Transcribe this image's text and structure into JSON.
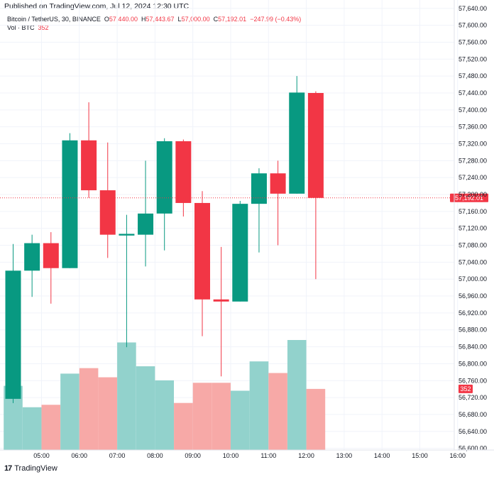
{
  "header": {
    "published": "Published on TradingView.com, Jul 12, 2024 12:30 UTC",
    "symbol": "Bitcoin / TetherUS, 30, BINANCE",
    "open_label": "O",
    "open": "57,440.00",
    "high_label": "H",
    "high": "57,443.67",
    "low_label": "L",
    "low": "57,000.00",
    "close_label": "C",
    "close": "57,192.01",
    "change": "−247.99 (−0.43%)",
    "vol_label": "Vol · BTC",
    "vol_value": "352"
  },
  "footer": {
    "brand": "TradingView",
    "logo": "17"
  },
  "colors": {
    "up": "#089981",
    "down": "#f23645",
    "vol_up": "#92d2cc",
    "vol_down": "#f7a9a7",
    "grid": "#f0f3fa"
  },
  "chart_data": {
    "type": "candlestick",
    "y_ticks": [
      "56,600.00",
      "56,640.00",
      "56,680.00",
      "56,720.00",
      "56,760.00",
      "56,800.00",
      "56,840.00",
      "56,880.00",
      "56,920.00",
      "56,960.00",
      "57,000.00",
      "57,040.00",
      "57,080.00",
      "57,120.00",
      "57,160.00",
      "57,200.00",
      "57,240.00",
      "57,280.00",
      "57,320.00",
      "57,360.00",
      "57,400.00",
      "57,440.00",
      "57,480.00",
      "57,520.00",
      "57,560.00",
      "57,600.00",
      "57,640.00"
    ],
    "y_tick_values": [
      56600,
      56640,
      56680,
      56720,
      56760,
      56800,
      56840,
      56880,
      56920,
      56960,
      57000,
      57040,
      57080,
      57120,
      57160,
      57200,
      57240,
      57280,
      57320,
      57360,
      57400,
      57440,
      57480,
      57520,
      57560,
      57600,
      57640
    ],
    "ylim": [
      56596,
      57643
    ],
    "x_ticks": [
      "05:00",
      "06:00",
      "07:00",
      "08:00",
      "09:00",
      "10:00",
      "11:00",
      "12:00",
      "13:00",
      "14:00",
      "15:00",
      "16:00"
    ],
    "x_tick_slots": [
      1.5,
      3.5,
      5.5,
      7.5,
      9.5,
      11.5,
      13.5,
      15.5,
      17.5,
      19.5,
      21.5,
      23.5
    ],
    "candles": [
      {
        "time": "04:30",
        "open": 56717,
        "high": 57083,
        "low": 56707,
        "close": 57020,
        "volume": 1.05
      },
      {
        "time": "05:00",
        "open": 57020,
        "high": 57105,
        "low": 56958,
        "close": 57085,
        "volume": 0.7
      },
      {
        "time": "05:30",
        "open": 57085,
        "high": 57111,
        "low": 56942,
        "close": 57026,
        "volume": 0.74
      },
      {
        "time": "06:00",
        "open": 57026,
        "high": 57345,
        "low": 57026,
        "close": 57328,
        "volume": 1.25
      },
      {
        "time": "06:30",
        "open": 57328,
        "high": 57418,
        "low": 57192,
        "close": 57210,
        "volume": 1.34
      },
      {
        "time": "07:00",
        "open": 57210,
        "high": 57323,
        "low": 57050,
        "close": 57105,
        "volume": 1.19
      },
      {
        "time": "07:30",
        "open": 57103,
        "high": 57152,
        "low": 56839,
        "close": 57107,
        "volume": 1.76
      },
      {
        "time": "08:00",
        "open": 57105,
        "high": 57280,
        "low": 57030,
        "close": 57155,
        "volume": 1.37
      },
      {
        "time": "08:30",
        "open": 57155,
        "high": 57333,
        "low": 57068,
        "close": 57326,
        "volume": 1.14
      },
      {
        "time": "09:00",
        "open": 57326,
        "high": 57330,
        "low": 57148,
        "close": 57180,
        "volume": 0.77
      },
      {
        "time": "09:30",
        "open": 57180,
        "high": 57208,
        "low": 56865,
        "close": 56952,
        "volume": 1.1
      },
      {
        "time": "10:00",
        "open": 56952,
        "high": 57076,
        "low": 56770,
        "close": 56947,
        "volume": 1.1
      },
      {
        "time": "10:30",
        "open": 56947,
        "high": 57185,
        "low": 56947,
        "close": 57178,
        "volume": 0.97
      },
      {
        "time": "11:00",
        "open": 57178,
        "high": 57262,
        "low": 57063,
        "close": 57250,
        "volume": 1.45
      },
      {
        "time": "11:30",
        "open": 57250,
        "high": 57280,
        "low": 57080,
        "close": 57202,
        "volume": 1.26
      },
      {
        "time": "12:00",
        "open": 57202,
        "high": 57480,
        "low": 57202,
        "close": 57441,
        "volume": 1.8
      },
      {
        "time": "12:30",
        "open": 57440,
        "high": 57444,
        "low": 57000,
        "close": 57192,
        "volume": 1.0
      }
    ],
    "last_price": "57,192.01",
    "last_price_value": 57192.01,
    "last_volume": "352"
  }
}
